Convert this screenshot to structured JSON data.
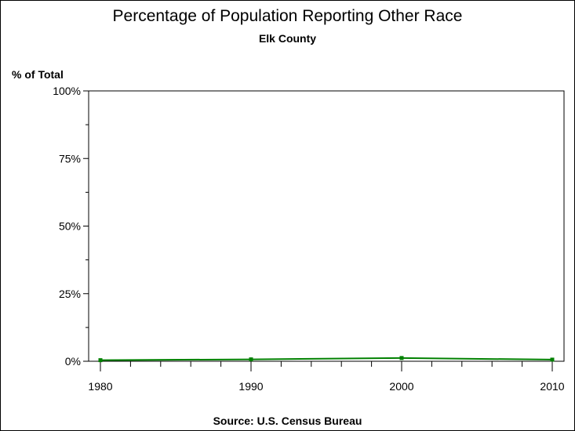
{
  "chart_data": {
    "type": "line",
    "title": "Percentage of Population Reporting Other Race",
    "subtitle": "Elk County",
    "ylabel": "% of Total",
    "xlabel": "",
    "source": "Source: U.S. Census Bureau",
    "x": [
      1980,
      1990,
      2000,
      2010
    ],
    "values": [
      0.4,
      0.7,
      1.2,
      0.6
    ],
    "xlim": [
      1980,
      2010
    ],
    "ylim": [
      0,
      100
    ],
    "xticks": [
      "1980",
      "1990",
      "2000",
      "2010"
    ],
    "yticks": [
      "0%",
      "25%",
      "50%",
      "75%",
      "100%"
    ],
    "grid": false,
    "color": "#008000"
  }
}
